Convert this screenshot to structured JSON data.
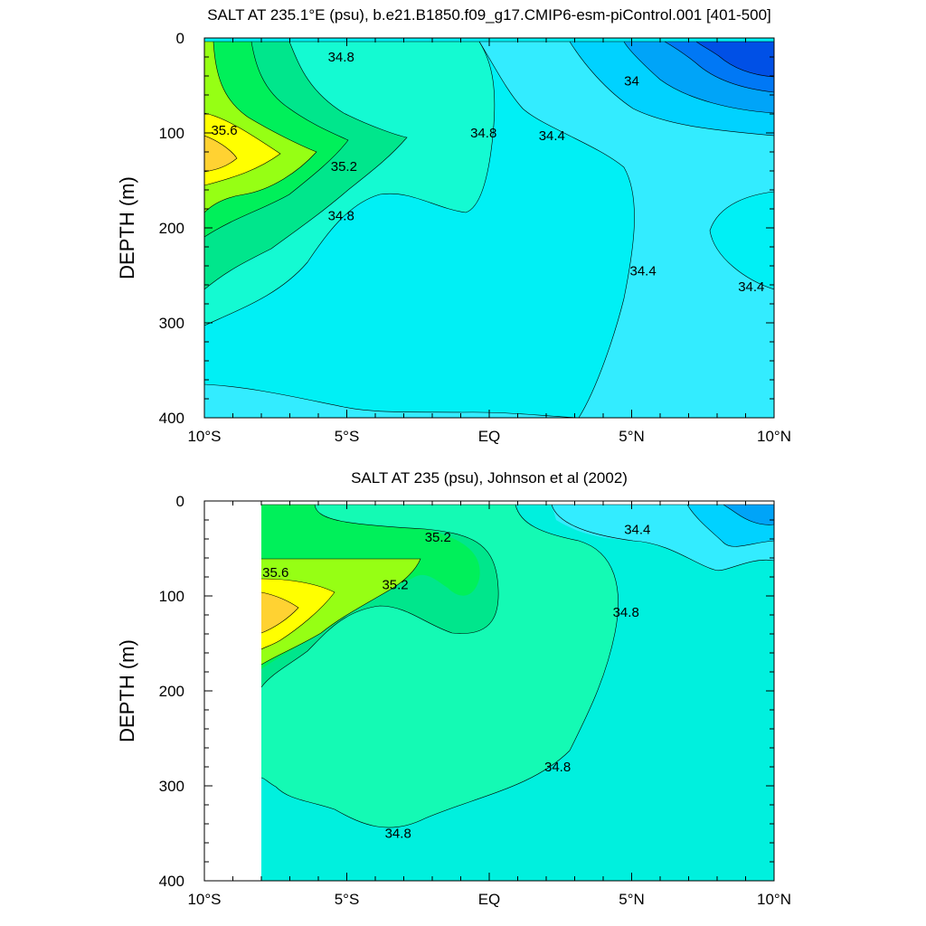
{
  "chart_data": [
    {
      "type": "contour",
      "title": "SALT AT 235.1°E (psu), b.e21.B1850.f09_g17.CMIP6-esm-piControl.001 [401-500]",
      "ylabel": "DEPTH (m)",
      "xlabel": "",
      "x_ticks": [
        "10°S",
        "5°S",
        "EQ",
        "5°N",
        "10°N"
      ],
      "x_tick_values": [
        -10,
        -5,
        0,
        5,
        10
      ],
      "y_ticks": [
        "0",
        "100",
        "200",
        "300",
        "400"
      ],
      "y_tick_values": [
        0,
        100,
        200,
        300,
        400
      ],
      "xlim": [
        -10,
        10
      ],
      "ylim": [
        400,
        0
      ],
      "y_reversed": true,
      "contour_interval": 0.2,
      "contour_labels": [
        {
          "text": "34.8",
          "x": -5.2,
          "y": 20
        },
        {
          "text": "35.6",
          "x": -9.3,
          "y": 97
        },
        {
          "text": "35.2",
          "x": -5.1,
          "y": 135
        },
        {
          "text": "34.8",
          "x": -5.2,
          "y": 187
        },
        {
          "text": "34.8",
          "x": -0.2,
          "y": 100
        },
        {
          "text": "34.4",
          "x": 2.2,
          "y": 103
        },
        {
          "text": "34",
          "x": 5.0,
          "y": 45
        },
        {
          "text": "34.4",
          "x": 5.4,
          "y": 245
        },
        {
          "text": "34.4",
          "x": 9.2,
          "y": 262
        }
      ],
      "fill_colors": {
        "lt_34_0": "#0050e6",
        "34_0_34_2": "#0078f5",
        "34_2_34_4": "#00a4f8",
        "34_4_34_6": "#00d2ff",
        "34_6_34_8": "#00f0f5",
        "34_8_35_0": "#14fad2",
        "35_0_35_2": "#00e68c",
        "35_2_35_4": "#00f05a",
        "35_4_35_6": "#96ff14",
        "35_6_35_8": "#ffff00",
        "gt_35_8": "#ffd232"
      }
    },
    {
      "type": "contour",
      "title": "SALT AT 235 (psu), Johnson et al (2002)",
      "ylabel": "DEPTH (m)",
      "xlabel": "",
      "x_ticks": [
        "10°S",
        "5°S",
        "EQ",
        "5°N",
        "10°N"
      ],
      "x_tick_values": [
        -10,
        -5,
        0,
        5,
        10
      ],
      "y_ticks": [
        "0",
        "100",
        "200",
        "300",
        "400"
      ],
      "y_tick_values": [
        0,
        100,
        200,
        300,
        400
      ],
      "xlim": [
        -10,
        10
      ],
      "ylim": [
        400,
        0
      ],
      "y_reversed": true,
      "data_x_range": [
        -8,
        10
      ],
      "contour_interval": 0.2,
      "contour_labels": [
        {
          "text": "35.2",
          "x": -1.8,
          "y": 38
        },
        {
          "text": "35.6",
          "x": -7.5,
          "y": 75
        },
        {
          "text": "35.2",
          "x": -3.3,
          "y": 88
        },
        {
          "text": "34.4",
          "x": 5.2,
          "y": 30
        },
        {
          "text": "34.8",
          "x": 4.8,
          "y": 117
        },
        {
          "text": "34.8",
          "x": 2.4,
          "y": 280
        },
        {
          "text": "34.8",
          "x": -3.2,
          "y": 350
        }
      ]
    }
  ]
}
